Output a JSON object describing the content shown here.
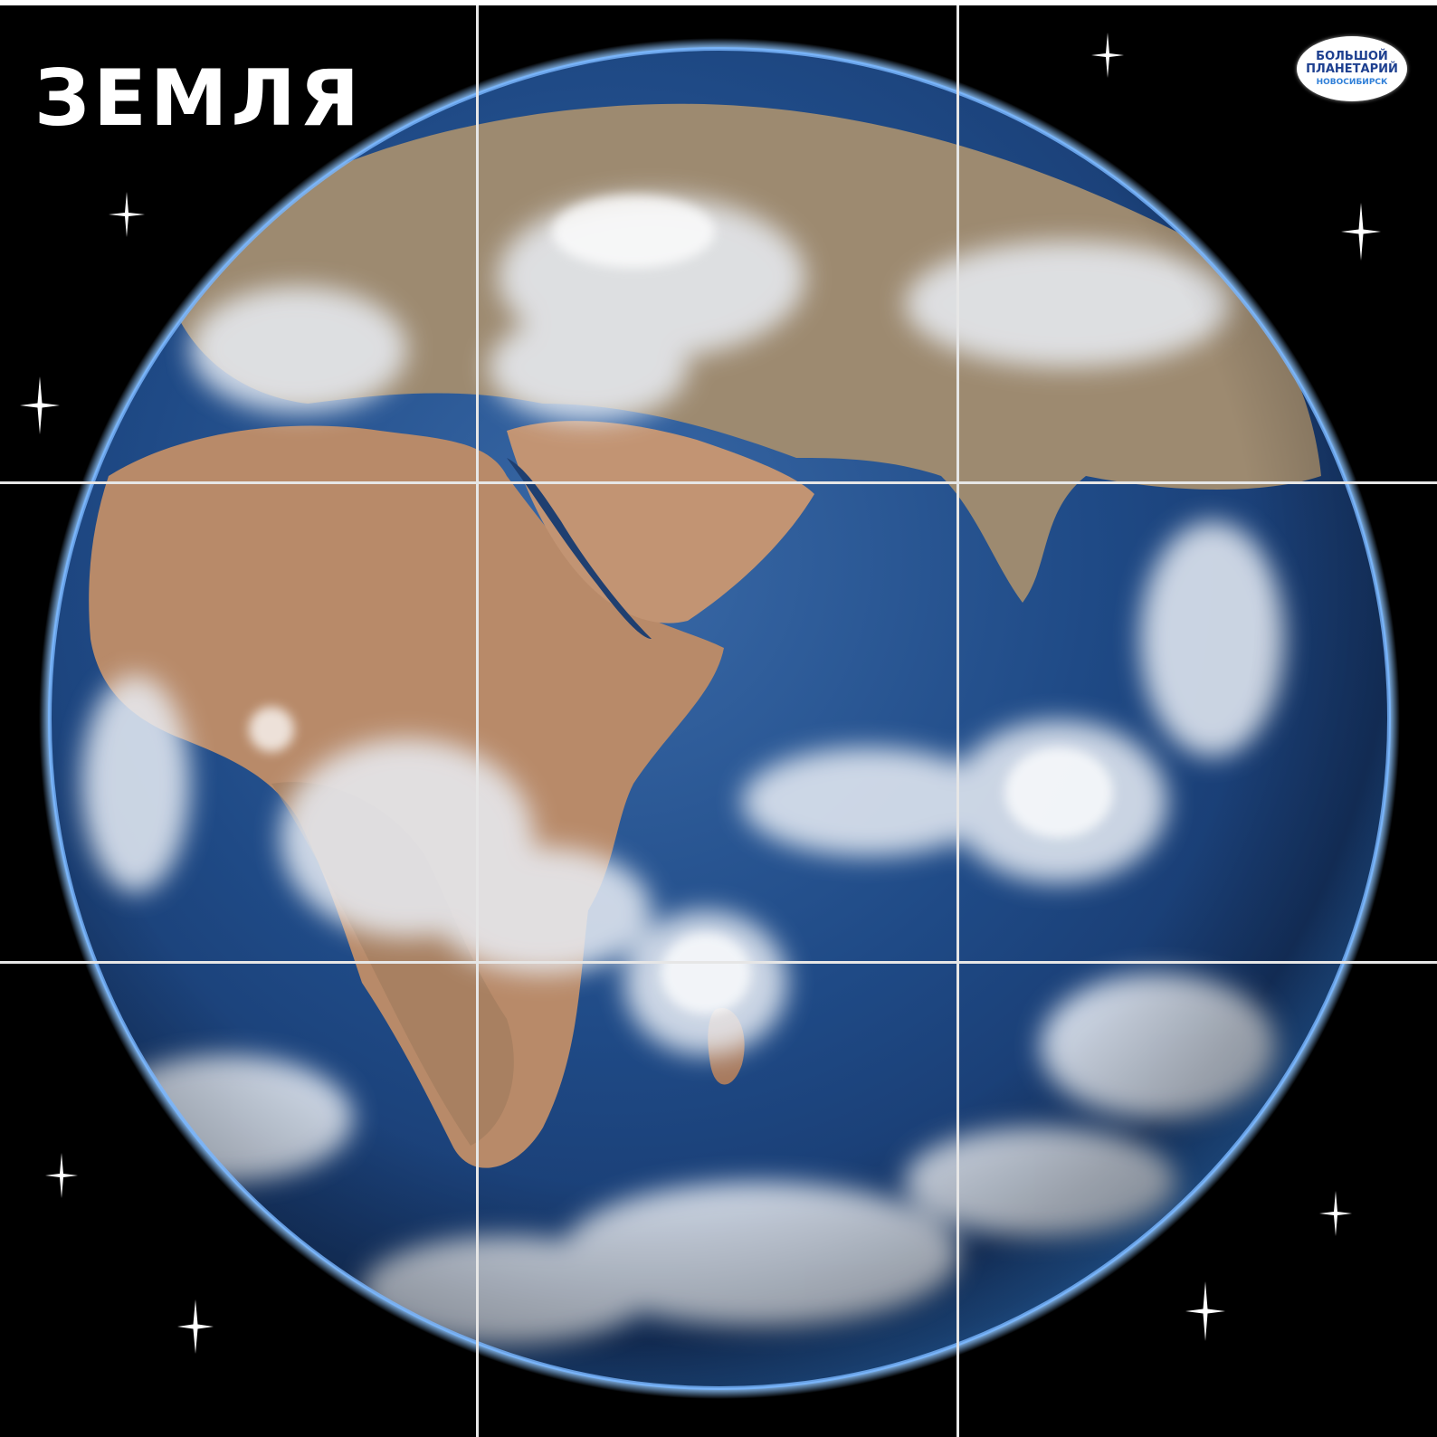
{
  "title": "ЗЕМЛЯ",
  "logo": {
    "line1": "БОЛЬШОЙ",
    "line2": "ПЛАНЕТАРИЙ",
    "line3": "НОВОСИБИРСК"
  },
  "colors": {
    "background": "#000000",
    "ocean": "#1c3f78",
    "land": "#b98a68",
    "clouds": "#e8eef5",
    "grid": "#e6e6e6"
  }
}
